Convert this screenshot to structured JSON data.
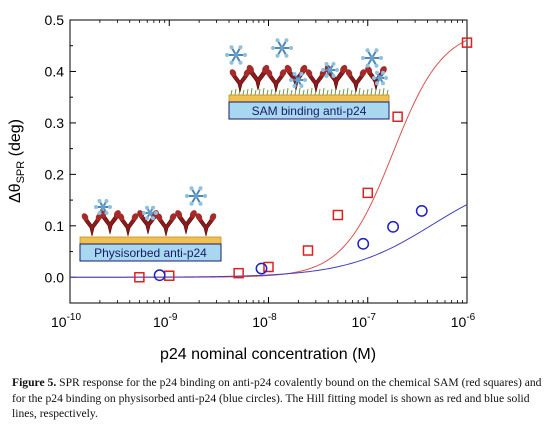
{
  "chart_data": {
    "type": "scatter",
    "xscale": "log",
    "xlabel": "p24 nominal concentration (M)",
    "ylabel_main": "Δθ",
    "ylabel_sub": "SPR",
    "ylabel_unit": " (deg)",
    "xlim": [
      1e-10,
      1e-06
    ],
    "ylim": [
      -0.05,
      0.5
    ],
    "x_ticks": [
      {
        "value": 1e-10,
        "base": "10",
        "exp": "-10"
      },
      {
        "value": 1e-09,
        "base": "10",
        "exp": "-9"
      },
      {
        "value": 1e-08,
        "base": "10",
        "exp": "-8"
      },
      {
        "value": 1e-07,
        "base": "10",
        "exp": "-7"
      },
      {
        "value": 1e-06,
        "base": "10",
        "exp": "-6"
      }
    ],
    "y_ticks": [
      "0.0",
      "0.1",
      "0.2",
      "0.3",
      "0.4",
      "0.5"
    ],
    "grid": false,
    "series": [
      {
        "marker": "square",
        "color": "#e02020",
        "x": [
          5e-10,
          1e-09,
          5e-09,
          1e-08,
          2.5e-08,
          5e-08,
          1e-07,
          2e-07,
          1e-06
        ],
        "y": [
          0.0,
          0.003,
          0.008,
          0.02,
          0.052,
          0.121,
          0.164,
          0.312,
          0.456
        ]
      },
      {
        "marker": "circle",
        "color": "#2020c8",
        "x": [
          8e-10,
          8.5e-09,
          9e-08,
          1.8e-07,
          3.5e-07
        ],
        "y": [
          0.004,
          0.017,
          0.065,
          0.098,
          0.129
        ]
      }
    ],
    "fits": [
      {
        "color": "#e05050",
        "y0": 0.0,
        "ymax": 0.485,
        "ec50": 1.8e-07,
        "n": 1.72
      },
      {
        "color": "#4040c0",
        "y0": 0.0,
        "ymax": 0.205,
        "ec50": 4.5e-07,
        "n": 1.0
      }
    ],
    "annotations": [
      {
        "text": "SAM binding anti-p24"
      },
      {
        "text": "Physisorbed anti-p24"
      }
    ]
  },
  "caption": {
    "label": "Figure 5.",
    "text": " SPR response for the p24 binding on anti-p24 covalently bound on the chemical SAM (red squares) and for the p24 binding on physisorbed anti-p24 (blue circles). The Hill fitting model is shown as red and blue solid lines, respectively."
  },
  "colors": {
    "box_fill": "#a8d8f0",
    "box_border": "#1a1a6a",
    "gold": "#f0c050",
    "antibody": "#8b1a1a",
    "antigen": "#6aa0c8"
  }
}
